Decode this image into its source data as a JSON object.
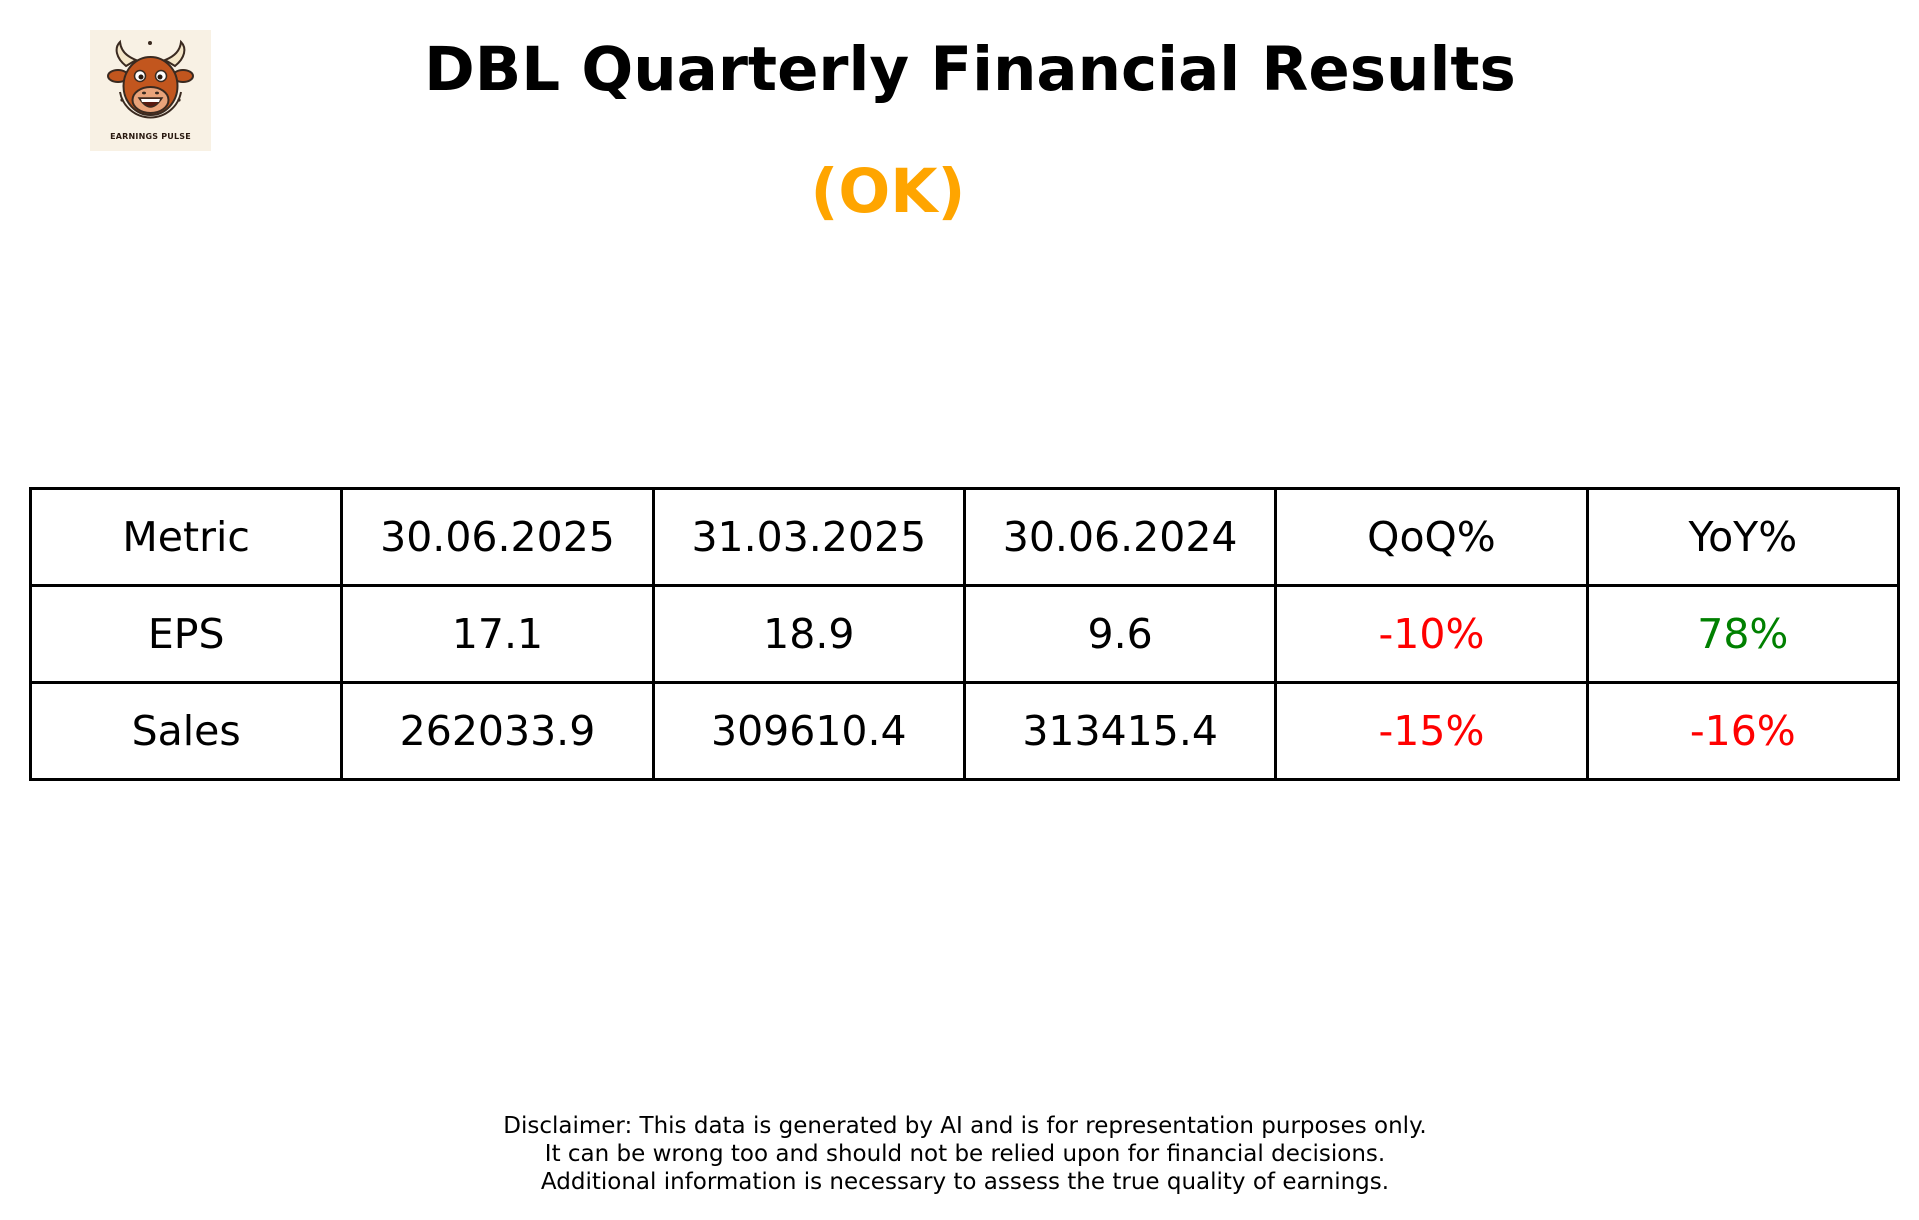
{
  "header": {
    "title": "DBL Quarterly Financial Results",
    "rating": "(OK)",
    "rating_color": "#FFA500"
  },
  "logo": {
    "icon": "bull-mascot-icon",
    "text": "EARNINGS PULSE"
  },
  "chart_data": {
    "type": "table",
    "columns": [
      "Metric",
      "30.06.2025",
      "31.03.2025",
      "30.06.2024",
      "QoQ%",
      "YoY%"
    ],
    "rows": [
      {
        "metric": "EPS",
        "values": [
          "17.1",
          "18.9",
          "9.6"
        ],
        "qoq": "-10%",
        "yoy": "78%",
        "qoq_color": "#FF0000",
        "yoy_color": "#008000"
      },
      {
        "metric": "Sales",
        "values": [
          "262033.9",
          "309610.4",
          "313415.4"
        ],
        "qoq": "-15%",
        "yoy": "-16%",
        "qoq_color": "#FF0000",
        "yoy_color": "#FF0000"
      }
    ]
  },
  "footer": {
    "disclaimer_lines": [
      "Disclaimer: This data is generated by AI and is for representation purposes only.",
      "It can be wrong too and should not be relied upon for financial decisions.",
      "Additional information is necessary to assess the true quality of earnings."
    ]
  }
}
